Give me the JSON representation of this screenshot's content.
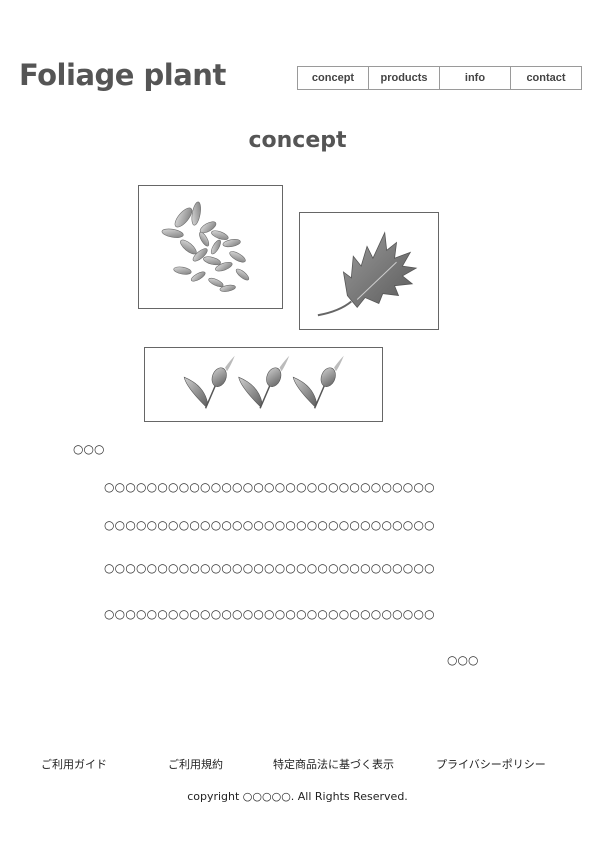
{
  "header": {
    "logo": "Foliage plant",
    "nav": [
      "concept",
      "products",
      "info",
      "contact"
    ]
  },
  "main": {
    "title": "concept",
    "images": [
      {
        "icon": "foliage-cluster-image"
      },
      {
        "icon": "oak-leaf-image"
      },
      {
        "icon": "flower-buds-image"
      }
    ],
    "subheading": "○○○",
    "lines": [
      "○○○○○○○○○○○○○○○○○○○○○○○○○○○○○○○",
      "○○○○○○○○○○○○○○○○○○○○○○○○○○○○○○○",
      "○○○○○○○○○○○○○○○○○○○○○○○○○○○○○○○",
      "○○○○○○○○○○○○○○○○○○○○○○○○○○○○○○○"
    ],
    "signature": "○○○"
  },
  "footer": {
    "links": [
      "ご利用ガイド",
      "ご利用規約",
      "特定商品法に基づく表示",
      "プライバシーポリシー"
    ],
    "copyright": "copyright ○○○○○. All Rights Reserved."
  }
}
